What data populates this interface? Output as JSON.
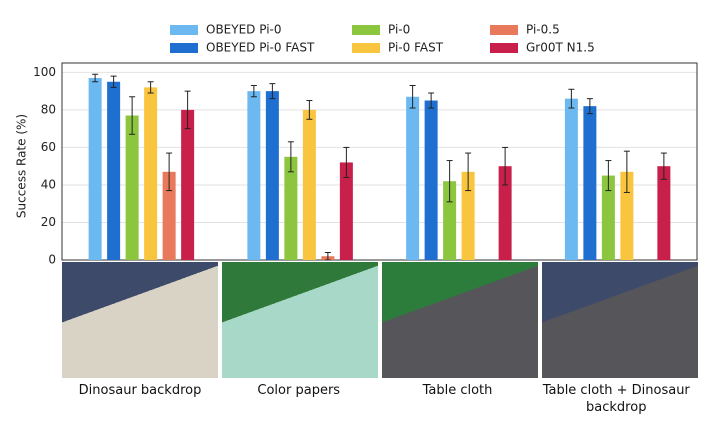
{
  "chart_data": {
    "type": "bar",
    "y_label": "Success Rate (%)",
    "categories": [
      "Dinosaur backdrop",
      "Color papers",
      "Table cloth",
      "Table cloth + Dinosaur backdrop"
    ],
    "series": [
      {
        "name": "OBEYED Pi-0",
        "color": "#6cb8f0",
        "values": [
          97,
          90,
          87,
          86
        ],
        "errors": [
          2,
          3,
          6,
          5
        ]
      },
      {
        "name": "OBEYED Pi-0 FAST",
        "color": "#1f6fd1",
        "values": [
          95,
          90,
          85,
          82
        ],
        "errors": [
          3,
          4,
          4,
          4
        ]
      },
      {
        "name": "Pi-0",
        "color": "#8cc63f",
        "values": [
          77,
          55,
          42,
          45
        ],
        "errors": [
          10,
          8,
          11,
          8
        ]
      },
      {
        "name": "Pi-0 FAST",
        "color": "#f9c53f",
        "values": [
          92,
          80,
          47,
          47
        ],
        "errors": [
          3,
          5,
          10,
          11
        ]
      },
      {
        "name": "Pi-0.5",
        "color": "#e8795a",
        "values": [
          47,
          2,
          0,
          0
        ],
        "errors": [
          10,
          2,
          0,
          0
        ]
      },
      {
        "name": "Gr00T N1.5",
        "color": "#c8204a",
        "values": [
          80,
          52,
          50,
          50
        ],
        "errors": [
          10,
          8,
          10,
          7
        ]
      }
    ],
    "ylim": [
      0,
      105
    ],
    "yticks": [
      0,
      20,
      40,
      60,
      80,
      100
    ],
    "grid": true
  }
}
